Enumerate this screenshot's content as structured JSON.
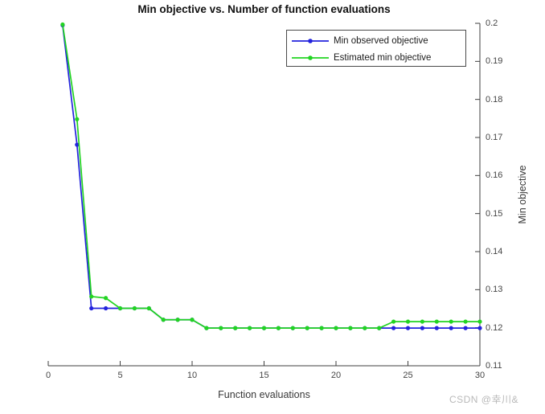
{
  "figure": {
    "watermark": "CSDN @幸川&"
  },
  "chart_data": {
    "type": "line",
    "title": "Min objective vs. Number of function evaluations",
    "xlabel": "Function evaluations",
    "ylabel": "Min objective",
    "xlim": [
      0,
      30
    ],
    "ylim": [
      0.11,
      0.2
    ],
    "grid": false,
    "legend_position": "top-right-inside",
    "axis_color": "#3f3f3f",
    "xticks": [
      0,
      5,
      10,
      15,
      20,
      25,
      30
    ],
    "xtick_labels": [
      "0",
      "5",
      "10",
      "15",
      "20",
      "25",
      "30"
    ],
    "ytick_values": [
      0.2,
      0.19,
      0.18,
      0.17,
      0.16,
      0.15,
      0.14,
      0.13,
      0.12,
      0.11
    ],
    "ytick_labels": [
      "0.2",
      "0.19",
      "0.18",
      "0.17",
      "0.16",
      "0.15",
      "0.14",
      "0.13",
      "0.12",
      "0.11"
    ],
    "x": [
      1,
      2,
      3,
      4,
      5,
      6,
      7,
      8,
      9,
      10,
      11,
      12,
      13,
      14,
      15,
      16,
      17,
      18,
      19,
      20,
      21,
      22,
      23,
      24,
      25,
      26,
      27,
      28,
      29,
      30
    ],
    "series": [
      {
        "name": "Min observed objective",
        "color": "#2323dd",
        "values": [
          0.1995,
          0.1681,
          0.1251,
          0.1251,
          0.1251,
          0.1251,
          0.1251,
          0.1221,
          0.1221,
          0.1221,
          0.1199,
          0.1199,
          0.1199,
          0.1199,
          0.1199,
          0.1199,
          0.1199,
          0.1199,
          0.1199,
          0.1199,
          0.1199,
          0.1199,
          0.1199,
          0.1199,
          0.1199,
          0.1199,
          0.1199,
          0.1199,
          0.1199,
          0.1199
        ]
      },
      {
        "name": "Estimated min objective",
        "color": "#22d422",
        "values": [
          0.1997,
          0.1748,
          0.1282,
          0.1278,
          0.1251,
          0.1251,
          0.1251,
          0.1221,
          0.1221,
          0.1221,
          0.1199,
          0.1199,
          0.1199,
          0.1199,
          0.1199,
          0.1199,
          0.1199,
          0.1199,
          0.1199,
          0.1199,
          0.1199,
          0.1199,
          0.1199,
          0.1216,
          0.1216,
          0.1216,
          0.1216,
          0.1216,
          0.1216,
          0.1216
        ]
      }
    ]
  }
}
